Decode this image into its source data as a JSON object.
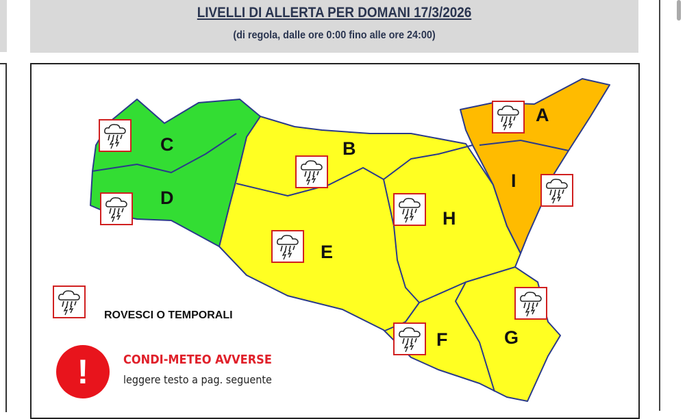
{
  "header": {
    "title": "LIVELLI DI ALLERTA PER DOMANI 17/3/2026",
    "subtitle": "(di regola, dalle ore 0:00 fino alle ore 24:00)"
  },
  "colors": {
    "green": "#33dd33",
    "yellow": "#ffff22",
    "orange": "#ffbb00",
    "icon_border": "#d02020",
    "warning": "#e8141c"
  },
  "zones": [
    {
      "id": "A",
      "level": "orange",
      "icon": "storm-icon"
    },
    {
      "id": "B",
      "level": "yellow",
      "icon": "storm-icon"
    },
    {
      "id": "C",
      "level": "green",
      "icon": "storm-icon"
    },
    {
      "id": "D",
      "level": "green",
      "icon": "storm-icon"
    },
    {
      "id": "E",
      "level": "yellow",
      "icon": "storm-icon"
    },
    {
      "id": "F",
      "level": "yellow",
      "icon": "storm-icon"
    },
    {
      "id": "G",
      "level": "yellow",
      "icon": "storm-icon"
    },
    {
      "id": "H",
      "level": "yellow",
      "icon": "storm-icon"
    },
    {
      "id": "I",
      "level": "orange",
      "icon": "storm-icon"
    }
  ],
  "legend": {
    "storm_label": "ROVESCI O TEMPORALI",
    "warning_title": "CONDI-METEO AVVERSE",
    "warning_sub": "leggere testo a pag. seguente",
    "warning_symbol": "!"
  }
}
